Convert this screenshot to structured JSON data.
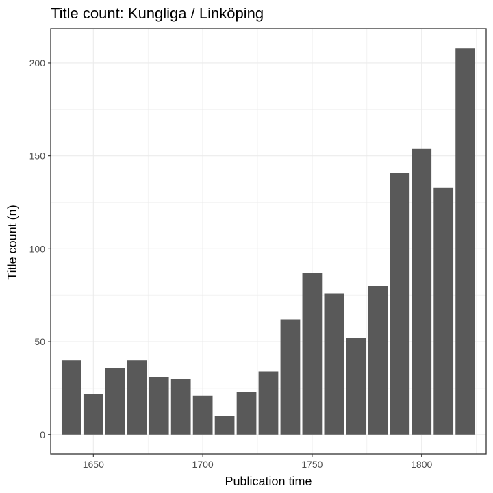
{
  "chart_data": {
    "type": "bar",
    "title": "Title count:  Kungliga / Linköping",
    "xlabel": "Publication time",
    "ylabel": "Title count (n)",
    "x": [
      1640,
      1650,
      1660,
      1670,
      1680,
      1690,
      1700,
      1710,
      1720,
      1730,
      1740,
      1750,
      1760,
      1770,
      1780,
      1790,
      1800,
      1810,
      1820
    ],
    "values": [
      40,
      22,
      36,
      40,
      31,
      30,
      21,
      10,
      23,
      34,
      62,
      87,
      76,
      52,
      80,
      141,
      154,
      133,
      208
    ],
    "bin_width": 9,
    "xlim": [
      1630.5,
      1829.5
    ],
    "ylim": [
      -10.4,
      218.4
    ],
    "x_ticks": [
      1650,
      1700,
      1750,
      1800
    ],
    "y_ticks": [
      0,
      50,
      100,
      150,
      200
    ],
    "x_minor": [
      1675,
      1725,
      1775,
      1825
    ],
    "y_minor": [
      25,
      75,
      125,
      175
    ],
    "grid": true,
    "legend": "none",
    "colors": {
      "bar": "#595959",
      "grid": "#ebebeb",
      "panel_border": "#333333",
      "tick_text": "#4d4d4d"
    }
  }
}
